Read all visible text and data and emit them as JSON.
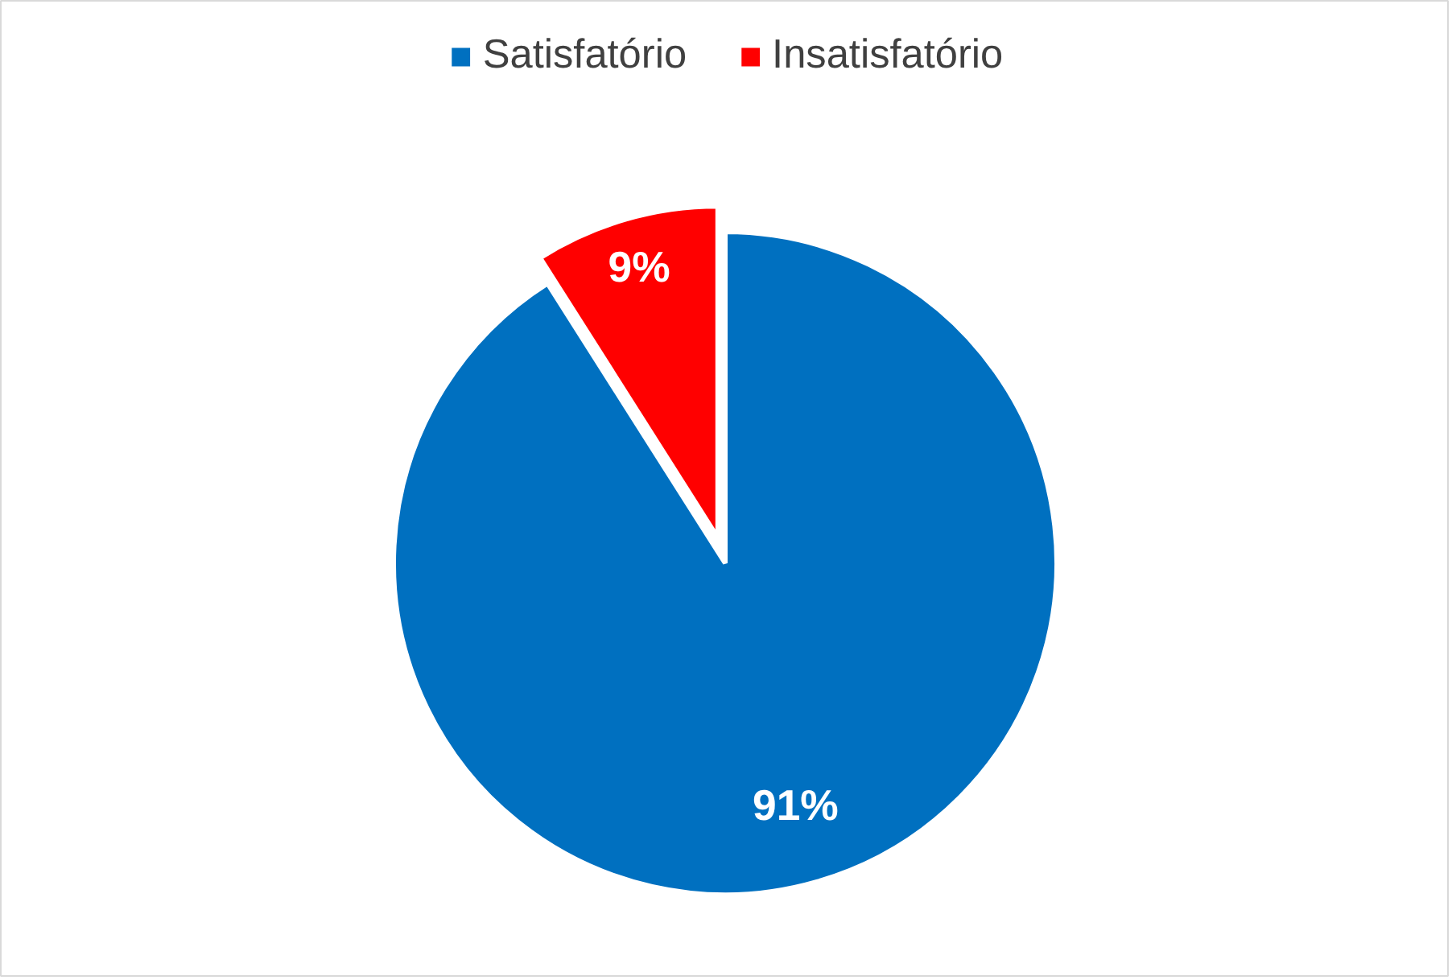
{
  "chart_data": {
    "type": "pie",
    "categories": [
      "Satisfatório",
      "Insatisfatório"
    ],
    "values": [
      91,
      9
    ],
    "colors": [
      "#0070c0",
      "#ff0000"
    ],
    "value_labels": [
      "91%",
      "9%"
    ],
    "legend": "top"
  }
}
